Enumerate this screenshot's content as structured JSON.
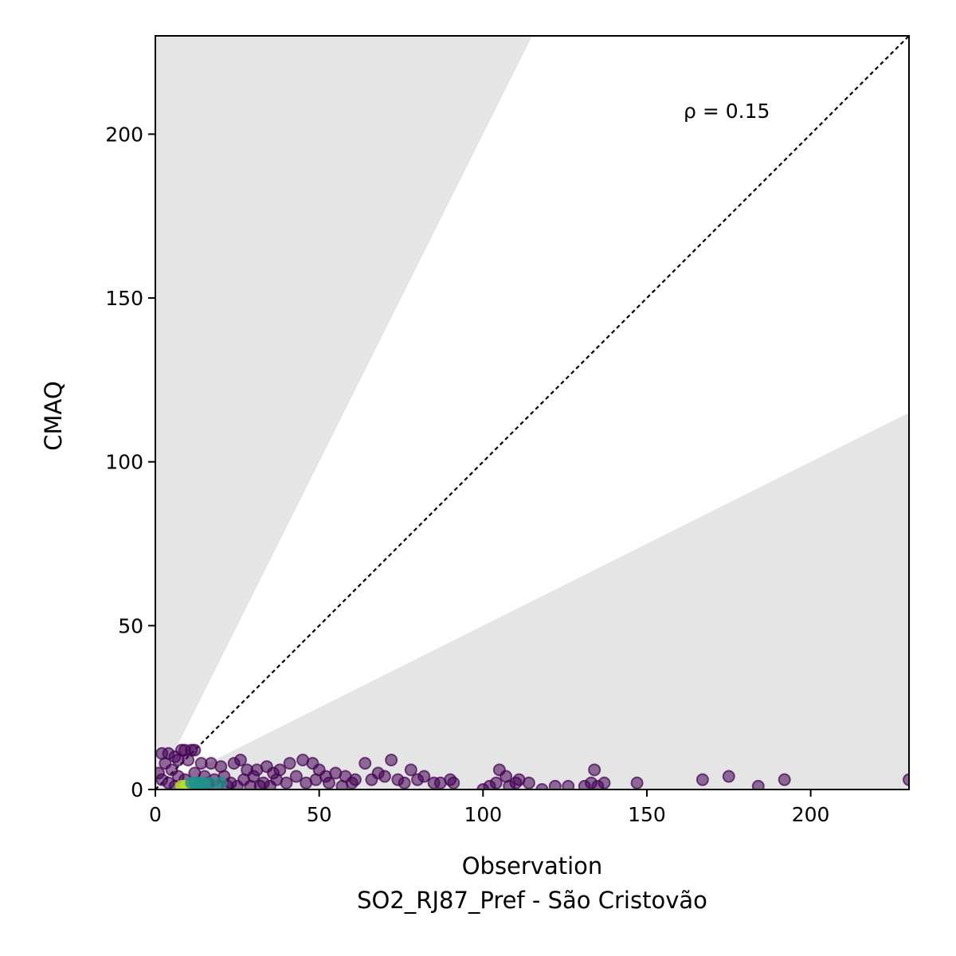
{
  "chart_data": {
    "type": "scatter",
    "title": "",
    "xlabel": "Observation",
    "xlabel2": "SO2_RJ87_Pref - São Cristovão",
    "ylabel": "CMAQ",
    "xlim": [
      0,
      230
    ],
    "ylim": [
      0,
      230
    ],
    "x_ticks": [
      0,
      50,
      100,
      150,
      200
    ],
    "y_ticks": [
      0,
      50,
      100,
      150,
      200
    ],
    "x_tick_labels": [
      "0",
      "50",
      "100",
      "150",
      "200"
    ],
    "y_tick_labels": [
      "0",
      "50",
      "100",
      "150",
      "200"
    ],
    "annotation": "ρ = 0.15",
    "reference_line": "1:1",
    "shaded_band_slopes": [
      0.5,
      2.0
    ],
    "grid": false,
    "colors": {
      "band": "#e5e5e5",
      "point_dark": "#440154",
      "point_mid": "#21918c",
      "point_bright": "#b5de2b",
      "axis": "#000000"
    },
    "points": [
      {
        "x": 8,
        "y": 12
      },
      {
        "x": 9,
        "y": 12
      },
      {
        "x": 11,
        "y": 12
      },
      {
        "x": 12,
        "y": 12
      },
      {
        "x": 2,
        "y": 11
      },
      {
        "x": 4,
        "y": 11
      },
      {
        "x": 6,
        "y": 10
      },
      {
        "x": 7,
        "y": 9
      },
      {
        "x": 10,
        "y": 9
      },
      {
        "x": 14,
        "y": 8
      },
      {
        "x": 17,
        "y": 8
      },
      {
        "x": 20,
        "y": 7
      },
      {
        "x": 24,
        "y": 8
      },
      {
        "x": 26,
        "y": 9
      },
      {
        "x": 28,
        "y": 6
      },
      {
        "x": 31,
        "y": 6
      },
      {
        "x": 34,
        "y": 7
      },
      {
        "x": 36,
        "y": 5
      },
      {
        "x": 38,
        "y": 6
      },
      {
        "x": 41,
        "y": 8
      },
      {
        "x": 45,
        "y": 9
      },
      {
        "x": 48,
        "y": 8
      },
      {
        "x": 50,
        "y": 6
      },
      {
        "x": 52,
        "y": 4
      },
      {
        "x": 55,
        "y": 5
      },
      {
        "x": 58,
        "y": 4
      },
      {
        "x": 61,
        "y": 3
      },
      {
        "x": 64,
        "y": 8
      },
      {
        "x": 66,
        "y": 3
      },
      {
        "x": 68,
        "y": 5
      },
      {
        "x": 70,
        "y": 4
      },
      {
        "x": 72,
        "y": 9
      },
      {
        "x": 74,
        "y": 3
      },
      {
        "x": 76,
        "y": 2
      },
      {
        "x": 78,
        "y": 6
      },
      {
        "x": 80,
        "y": 3
      },
      {
        "x": 82,
        "y": 4
      },
      {
        "x": 85,
        "y": 2
      },
      {
        "x": 87,
        "y": 2
      },
      {
        "x": 90,
        "y": 3
      },
      {
        "x": 91,
        "y": 2
      },
      {
        "x": 100,
        "y": 0
      },
      {
        "x": 102,
        "y": 1
      },
      {
        "x": 104,
        "y": 2
      },
      {
        "x": 105,
        "y": 6
      },
      {
        "x": 107,
        "y": 4
      },
      {
        "x": 108,
        "y": 1
      },
      {
        "x": 110,
        "y": 2
      },
      {
        "x": 111,
        "y": 3
      },
      {
        "x": 114,
        "y": 2
      },
      {
        "x": 118,
        "y": 0
      },
      {
        "x": 122,
        "y": 1
      },
      {
        "x": 126,
        "y": 1
      },
      {
        "x": 131,
        "y": 1
      },
      {
        "x": 133,
        "y": 2
      },
      {
        "x": 134,
        "y": 6
      },
      {
        "x": 135,
        "y": 1
      },
      {
        "x": 137,
        "y": 2
      },
      {
        "x": 147,
        "y": 2
      },
      {
        "x": 167,
        "y": 3
      },
      {
        "x": 175,
        "y": 4
      },
      {
        "x": 184,
        "y": 1
      },
      {
        "x": 192,
        "y": 3
      },
      {
        "x": 230,
        "y": 3
      },
      {
        "x": 3,
        "y": 8
      },
      {
        "x": 5,
        "y": 6
      },
      {
        "x": 7,
        "y": 4
      },
      {
        "x": 9,
        "y": 3
      },
      {
        "x": 12,
        "y": 5
      },
      {
        "x": 15,
        "y": 4
      },
      {
        "x": 18,
        "y": 3
      },
      {
        "x": 21,
        "y": 4
      },
      {
        "x": 23,
        "y": 2
      },
      {
        "x": 27,
        "y": 3
      },
      {
        "x": 30,
        "y": 4
      },
      {
        "x": 33,
        "y": 2
      },
      {
        "x": 37,
        "y": 3
      },
      {
        "x": 40,
        "y": 2
      },
      {
        "x": 43,
        "y": 4
      },
      {
        "x": 46,
        "y": 2
      },
      {
        "x": 49,
        "y": 3
      },
      {
        "x": 53,
        "y": 2
      },
      {
        "x": 57,
        "y": 1
      },
      {
        "x": 60,
        "y": 2
      },
      {
        "x": 1,
        "y": 5
      },
      {
        "x": 2,
        "y": 3
      },
      {
        "x": 4,
        "y": 2
      },
      {
        "x": 6,
        "y": 1
      },
      {
        "x": 13,
        "y": 1
      },
      {
        "x": 16,
        "y": 2
      },
      {
        "x": 19,
        "y": 1
      },
      {
        "x": 22,
        "y": 1
      },
      {
        "x": 25,
        "y": 1
      },
      {
        "x": 29,
        "y": 1
      },
      {
        "x": 32,
        "y": 1
      },
      {
        "x": 35,
        "y": 1
      }
    ],
    "dense_points": [
      {
        "x": 8,
        "y": 1
      },
      {
        "x": 9,
        "y": 1
      },
      {
        "x": 10,
        "y": 1
      },
      {
        "x": 11,
        "y": 2
      },
      {
        "x": 12,
        "y": 2
      },
      {
        "x": 13,
        "y": 2
      },
      {
        "x": 14,
        "y": 2
      },
      {
        "x": 15,
        "y": 2
      },
      {
        "x": 17,
        "y": 2
      },
      {
        "x": 20,
        "y": 2
      }
    ]
  }
}
